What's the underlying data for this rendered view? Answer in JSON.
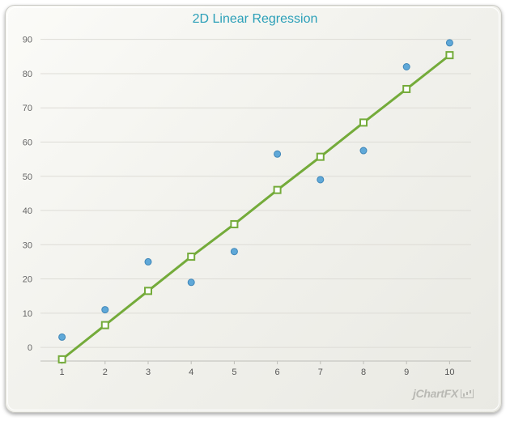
{
  "chart_data": {
    "type": "scatter",
    "title": "2D Linear Regression",
    "xlabel": "",
    "ylabel": "",
    "x": [
      1,
      2,
      3,
      4,
      5,
      6,
      7,
      8,
      9,
      10
    ],
    "xlim": [
      0.5,
      10.5
    ],
    "ylim": [
      -4,
      93
    ],
    "y_ticks": [
      0,
      10,
      20,
      30,
      40,
      50,
      60,
      70,
      80,
      90
    ],
    "x_ticks": [
      1,
      2,
      3,
      4,
      5,
      6,
      7,
      8,
      9,
      10
    ],
    "grid": "horizontal",
    "legend": "none",
    "series": [
      {
        "kind": "scatter",
        "values": [
          3,
          11,
          25,
          19,
          28,
          56.5,
          49,
          57.5,
          82,
          89
        ],
        "color": "#5fa8d8",
        "marker": "circle"
      },
      {
        "kind": "line",
        "values": [
          -3.5,
          6.5,
          16.5,
          26.5,
          36,
          46,
          55.7,
          65.7,
          75.5,
          85.4
        ],
        "color": "#74ab3a",
        "marker": "square"
      }
    ]
  },
  "brand": {
    "text": "jChartFX"
  }
}
